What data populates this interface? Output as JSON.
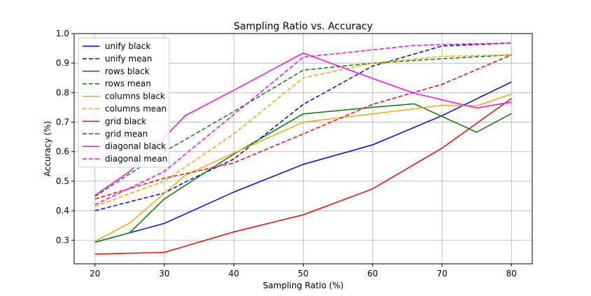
{
  "chart_data": {
    "type": "line",
    "title": "Sampling Ratio vs. Accuracy",
    "xlabel": "Sampling Ratio (%)",
    "ylabel": "Accuracy (%)",
    "xlim": [
      17,
      83
    ],
    "ylim": [
      0.22,
      1.0
    ],
    "xticks": [
      20,
      30,
      40,
      50,
      60,
      70,
      80
    ],
    "yticks": [
      0.3,
      0.4,
      0.5,
      0.6,
      0.7,
      0.8,
      0.9,
      1.0
    ],
    "grid": true,
    "legend_position": "upper-left",
    "series": [
      {
        "name": "unify black",
        "color": "#0000ff",
        "style": "solid",
        "x": [
          20,
          25,
          30,
          40,
          50,
          60,
          70,
          80
        ],
        "y": [
          0.293,
          0.325,
          0.357,
          0.463,
          0.557,
          0.623,
          0.722,
          0.836
        ]
      },
      {
        "name": "unify mean",
        "color": "#0000ff",
        "style": "dashed",
        "x": [
          20,
          30,
          33,
          40,
          50,
          60,
          70,
          80
        ],
        "y": [
          0.4,
          0.46,
          0.497,
          0.575,
          0.76,
          0.89,
          0.958,
          0.968
        ]
      },
      {
        "name": "rows black",
        "color": "#008000",
        "style": "solid",
        "x": [
          20,
          25,
          30,
          40,
          50,
          60,
          66,
          75,
          80
        ],
        "y": [
          0.293,
          0.325,
          0.44,
          0.592,
          0.728,
          0.75,
          0.762,
          0.666,
          0.729
        ]
      },
      {
        "name": "rows mean",
        "color": "#008000",
        "style": "dashed",
        "x": [
          20,
          25,
          30,
          40,
          50,
          60,
          70,
          80
        ],
        "y": [
          0.448,
          0.525,
          0.6,
          0.736,
          0.876,
          0.9,
          0.915,
          0.928
        ]
      },
      {
        "name": "columns black",
        "color": "#ffa500",
        "style": "solid",
        "x": [
          20,
          25,
          33,
          40,
          50,
          60,
          70,
          75,
          80
        ],
        "y": [
          0.296,
          0.358,
          0.52,
          0.595,
          0.7,
          0.728,
          0.757,
          0.755,
          0.795
        ]
      },
      {
        "name": "columns mean",
        "color": "#ffa500",
        "style": "dashed",
        "x": [
          20,
          30,
          40,
          50,
          60,
          70,
          80
        ],
        "y": [
          0.415,
          0.5,
          0.66,
          0.85,
          0.9,
          0.923,
          0.928
        ]
      },
      {
        "name": "grid black",
        "color": "#ff0000",
        "style": "solid",
        "x": [
          20,
          30,
          40,
          50,
          60,
          70,
          80
        ],
        "y": [
          0.253,
          0.259,
          0.328,
          0.386,
          0.474,
          0.612,
          0.78
        ]
      },
      {
        "name": "grid mean",
        "color": "#ff0000",
        "style": "dashed",
        "x": [
          20,
          25,
          30,
          33,
          40,
          50,
          60,
          70,
          80
        ],
        "y": [
          0.44,
          0.475,
          0.51,
          0.525,
          0.562,
          0.66,
          0.76,
          0.828,
          0.928
        ]
      },
      {
        "name": "diagonal black",
        "color": "#ff00ff",
        "style": "solid",
        "x": [
          20,
          25,
          30,
          33,
          40,
          50,
          60,
          66,
          75,
          80
        ],
        "y": [
          0.452,
          0.533,
          0.648,
          0.722,
          0.808,
          0.934,
          0.848,
          0.798,
          0.748,
          0.768
        ]
      },
      {
        "name": "diagonal mean",
        "color": "#ff00ff",
        "style": "dashed",
        "x": [
          20,
          30,
          40,
          50,
          60,
          66,
          70,
          80
        ],
        "y": [
          0.42,
          0.533,
          0.726,
          0.92,
          0.945,
          0.96,
          0.963,
          0.968
        ]
      }
    ]
  }
}
